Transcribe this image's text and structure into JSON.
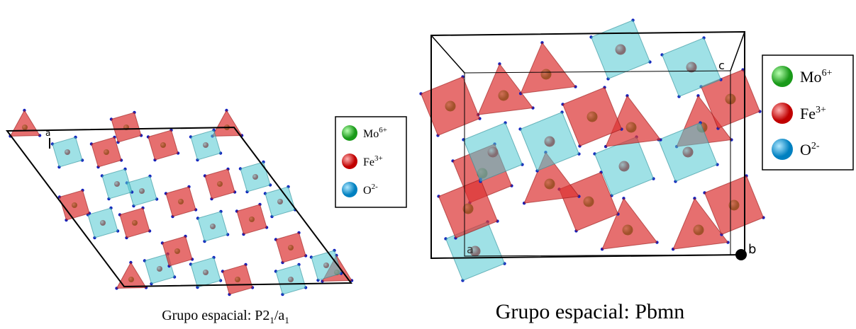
{
  "left": {
    "axis_label": "a",
    "legend": [
      {
        "element": "Mo",
        "charge": "6+"
      },
      {
        "element": "Fe",
        "charge": "3+"
      },
      {
        "element": "O",
        "charge": "2-"
      }
    ],
    "caption": {
      "text": "Grupo espacial: P2",
      "sub1": "1",
      "mid": "/a",
      "sub2": "1"
    }
  },
  "right": {
    "axis_labels": [
      "c",
      "a",
      "b"
    ],
    "legend": [
      {
        "element": "Mo",
        "charge": "6+"
      },
      {
        "element": "Fe",
        "charge": "3+"
      },
      {
        "element": "O",
        "charge": "2-"
      }
    ],
    "caption": "Grupo espacial: Pbmn"
  }
}
